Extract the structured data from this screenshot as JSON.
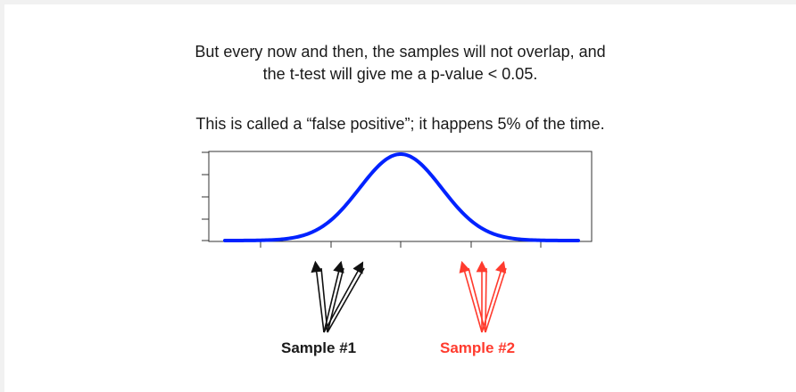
{
  "text": {
    "line1": "But every now and then, the samples will not overlap, and",
    "line2": "the t-test will give me a p-value < 0.05.",
    "line3": "This is called a “false positive”; it happens 5% of the time."
  },
  "labels": {
    "sample1": "Sample #1",
    "sample2": "Sample #2"
  },
  "colors": {
    "curve": "#0022ff",
    "sample1_arrows": "#111111",
    "sample2_arrows": "#ff3b2e",
    "sample2_label": "#ff3b2e"
  }
}
